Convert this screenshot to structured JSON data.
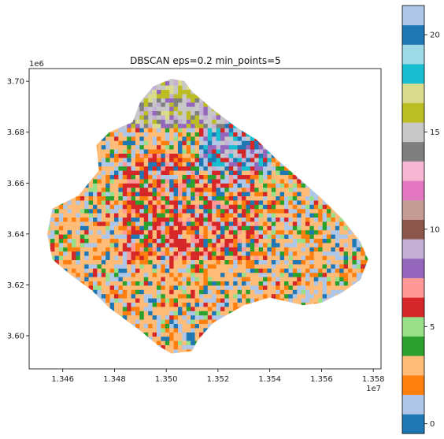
{
  "chart_data": {
    "type": "heatmap",
    "title": "DBSCAN eps=0.2 min_points=5",
    "xlabel": "",
    "ylabel": "",
    "x_offset_label": "1e7",
    "y_offset_label": "1e6",
    "xlim": [
      1.3447,
      1.3583
    ],
    "ylim": [
      3.587,
      3.705
    ],
    "x_ticks": [
      1.346,
      1.348,
      1.35,
      1.352,
      1.354,
      1.356,
      1.358
    ],
    "x_tick_labels": [
      "1.346",
      "1.348",
      "1.350",
      "1.352",
      "1.354",
      "1.356",
      "1.358"
    ],
    "y_ticks": [
      3.6,
      3.62,
      3.64,
      3.66,
      3.68,
      3.7
    ],
    "y_tick_labels": [
      "3.60",
      "3.62",
      "3.64",
      "3.66",
      "3.68",
      "3.70"
    ],
    "grid": false,
    "colorbar": {
      "min": -0.5,
      "max": 21.5,
      "ticks": [
        0,
        5,
        10,
        15,
        20
      ],
      "tick_labels": [
        "0",
        "5",
        "10",
        "15",
        "20"
      ],
      "colors": [
        "#1f77b4",
        "#aec7e8",
        "#ff7f0e",
        "#ffbb78",
        "#2ca02c",
        "#98df8a",
        "#d62728",
        "#ff9896",
        "#9467bd",
        "#c5b0d5",
        "#8c564b",
        "#c49c94",
        "#e377c2",
        "#f7b6d2",
        "#7f7f7f",
        "#c7c7c7",
        "#bcbd22",
        "#dbdb8d",
        "#17becf",
        "#9edae5"
      ]
    },
    "cluster_region_outline": {
      "x": [
        1.3474,
        1.3473,
        1.3478,
        1.3487,
        1.349,
        1.3495,
        1.3502,
        1.3507,
        1.351,
        1.3518,
        1.3527,
        1.3535,
        1.3542,
        1.355,
        1.356,
        1.3568,
        1.3575,
        1.3578,
        1.3575,
        1.3568,
        1.356,
        1.3553,
        1.354,
        1.353,
        1.3518,
        1.3512,
        1.351,
        1.3502,
        1.3497,
        1.349,
        1.3482,
        1.3478,
        1.3471,
        1.3463,
        1.3456,
        1.3454,
        1.3456,
        1.3466,
        1.347,
        1.3474
      ],
      "y": [
        3.665,
        3.675,
        3.68,
        3.684,
        3.692,
        3.698,
        3.701,
        3.7,
        3.696,
        3.689,
        3.682,
        3.677,
        3.67,
        3.663,
        3.654,
        3.646,
        3.637,
        3.63,
        3.622,
        3.617,
        3.613,
        3.612,
        3.615,
        3.612,
        3.605,
        3.598,
        3.594,
        3.593,
        3.596,
        3.602,
        3.608,
        3.611,
        3.618,
        3.624,
        3.63,
        3.64,
        3.65,
        3.655,
        3.66,
        3.665
      ]
    }
  }
}
